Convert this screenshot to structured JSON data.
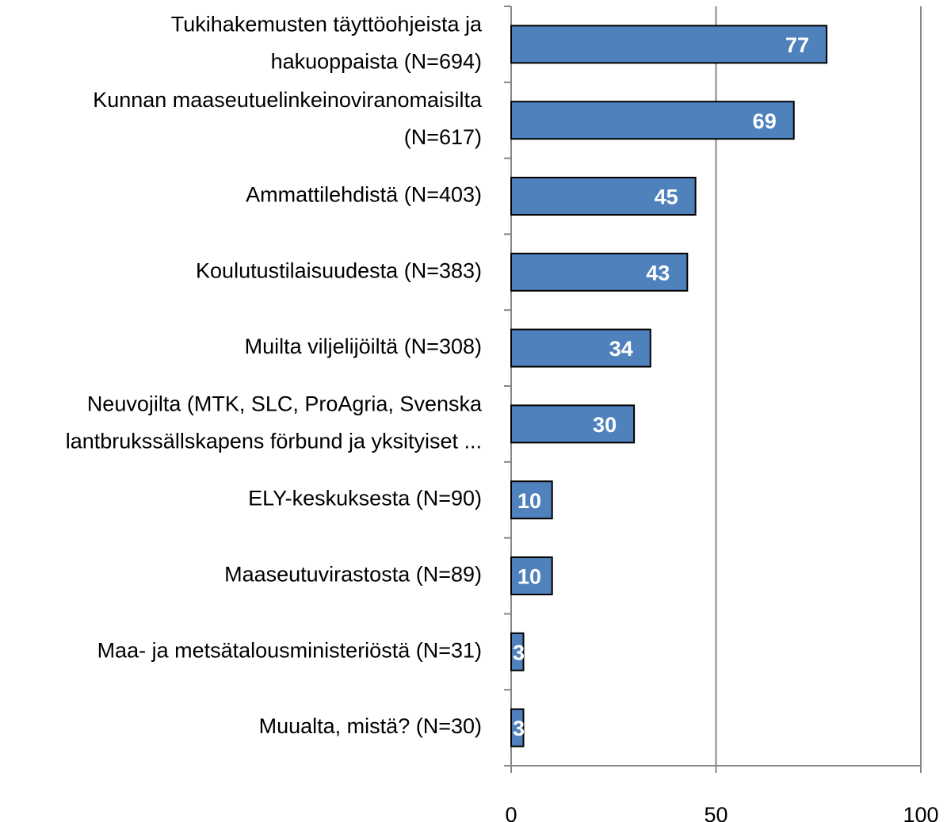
{
  "chart_data": {
    "type": "barh",
    "categories": [
      [
        "Tukihakemusten täyttöohjeista  ja",
        "hakuoppaista (N=694)"
      ],
      [
        "Kunnan maaseutuelinkeinoviranomaisilta",
        "(N=617)"
      ],
      [
        "Ammattilehdistä  (N=403)"
      ],
      [
        "Koulutustilaisuudesta  (N=383)"
      ],
      [
        "Muilta viljelijöiltä  (N=308)"
      ],
      [
        "Neuvojilta (MTK,  SLC, ProAgria, Svenska",
        "lantbrukssällskapens förbund ja yksityiset ..."
      ],
      [
        "ELY-keskuksesta (N=90)"
      ],
      [
        "Maaseutuvirastosta  (N=89)"
      ],
      [
        "Maa- ja metsätalousministeriöstä  (N=31)"
      ],
      [
        "Muualta, mistä?  (N=30)"
      ]
    ],
    "values": [
      77,
      69,
      45,
      43,
      34,
      30,
      10,
      10,
      3,
      3
    ],
    "color": "#4f81bd",
    "xlim": [
      0,
      100
    ],
    "xticks": [
      0,
      50,
      100
    ],
    "grid": true
  }
}
